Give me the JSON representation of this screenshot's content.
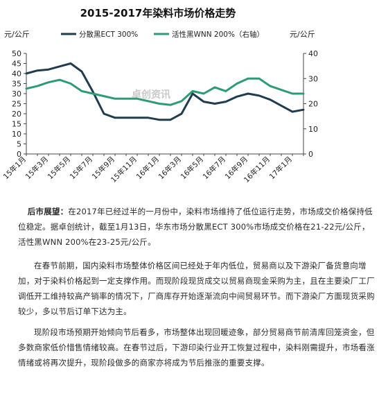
{
  "chart_data": {
    "type": "line",
    "title": "2015-2017年染料市场价格走势",
    "left_unit": "元/公斤",
    "right_unit": "元/公斤",
    "x": [
      "15年1月",
      "15年2月",
      "15年3月",
      "15年4月",
      "15年5月",
      "15年6月",
      "15年7月",
      "15年8月",
      "15年9月",
      "15年10月",
      "15年11月",
      "15年12月",
      "16年1月",
      "16年2月",
      "16年3月",
      "16年4月",
      "16年5月",
      "16年6月",
      "16年7月",
      "16年8月",
      "16年9月",
      "16年10月",
      "16年11月",
      "16年12月",
      "17年1月",
      "17年2月"
    ],
    "xticklabels": [
      "15年1月",
      "15年3月",
      "15年5月",
      "15年7月",
      "15年9月",
      "15年11月",
      "16年1月",
      "16年3月",
      "16年5月",
      "16年7月",
      "16年9月",
      "16年11月",
      "17年1月"
    ],
    "ylim_left": [
      0,
      50
    ],
    "yticks_left": [
      "0",
      "5",
      "10",
      "15",
      "20",
      "25",
      "30",
      "35",
      "40",
      "45",
      "50"
    ],
    "ylim_right": [
      0,
      40
    ],
    "yticks_right": [
      "0",
      "10",
      "20",
      "30",
      "40"
    ],
    "watermark": "卓创资讯",
    "series": [
      {
        "name": "分散黑ECT 300%",
        "axis": "left",
        "color": "#1f3d4f",
        "values": [
          40,
          41.5,
          42,
          43.5,
          45,
          41,
          31,
          20,
          18,
          18,
          18,
          18,
          17,
          17,
          20,
          30,
          26,
          25,
          26,
          28.5,
          30,
          29,
          27,
          24,
          21,
          22
        ]
      },
      {
        "name": "活性黑WNN 200%（右轴）",
        "axis": "right",
        "color": "#2d9c75",
        "values": [
          26,
          27,
          28.5,
          29.5,
          28,
          25,
          24,
          23,
          22,
          22,
          22,
          21,
          20,
          19.5,
          21,
          25,
          24,
          26.5,
          25,
          28,
          30,
          30,
          27,
          25.5,
          24,
          24
        ]
      }
    ]
  },
  "article": {
    "p1_lead": "后市展望：",
    "p1_text": "在2017年已经过半的一月份中，染料市场维持了低位运行走势，市场成交价格保持低位稳定。据卓创统计，截至1月13日，华东市场分散黑ECT 300%市场成交价格在21-22元/公斤，活性黑WNN 200%在23-25元/公斤。",
    "p2": "在春节前期，国内染料市场整体价格区间已经处于年内低位，贸易商以及下游染厂备货意向增加，对于染料价格起到一定支撑作用。而现阶段现货成交以贸易商现金采购为主，且在主要染厂工厂调低开工维持较高产销率的情况下，厂商库存开始逐渐流向中间贸易环节。而下游染厂方面现货采购较少，多以节后订单下达为主。",
    "p3": "现阶段市场预期开始倾向节后看多，市场整体出现回暖迹象，部分贸易商节前清库回笼资金，但多数商家低价惜售情绪较高。在春节过后，下游印染行业开工恢复过程中，染料刚需提升，市场看涨情绪或将再次提升，现阶段做多的商家亦将成为节后推涨的重要支撑。"
  }
}
